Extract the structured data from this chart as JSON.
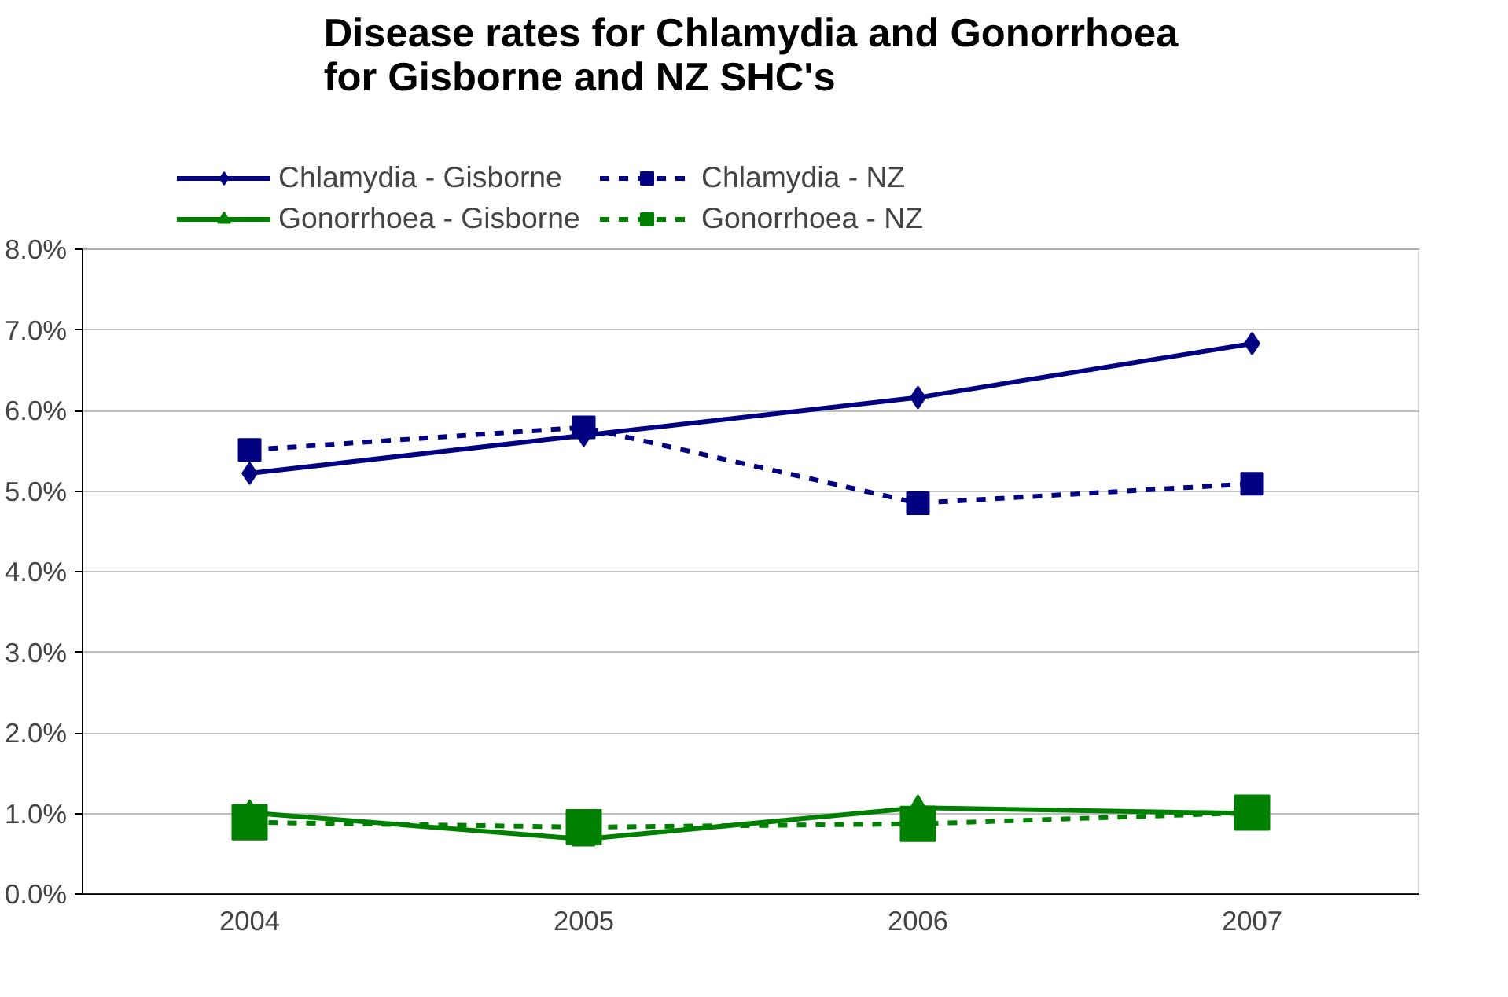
{
  "chart_data": {
    "type": "line",
    "title": "Disease rates for Chlamydia and Gonorrhoea\nfor Gisborne and NZ SHC's",
    "categories": [
      "2004",
      "2005",
      "2006",
      "2007"
    ],
    "series": [
      {
        "name": "Chlamydia - Gisborne",
        "color": "#000080",
        "marker": "diamond",
        "line_style": "solid",
        "values": [
          5.22,
          5.69,
          6.16,
          6.83
        ]
      },
      {
        "name": "Chlamydia - NZ",
        "color": "#000080",
        "marker": "square",
        "line_style": "dashed",
        "values": [
          5.51,
          5.79,
          4.85,
          5.09
        ]
      },
      {
        "name": "Gonorrhoea - Gisborne",
        "color": "#008000",
        "marker": "triangle",
        "line_style": "solid",
        "values": [
          1.01,
          0.68,
          1.07,
          1.0
        ]
      },
      {
        "name": "Gonorrhoea - NZ",
        "color": "#008000",
        "marker": "square",
        "line_style": "dashed",
        "values": [
          0.89,
          0.83,
          0.87,
          1.01
        ]
      }
    ],
    "ylim": [
      0,
      8
    ],
    "yticks": [
      {
        "value": 0,
        "label": "0.0%"
      },
      {
        "value": 1,
        "label": "1.0%"
      },
      {
        "value": 2,
        "label": "2.0%"
      },
      {
        "value": 3,
        "label": "3.0%"
      },
      {
        "value": 4,
        "label": "4.0%"
      },
      {
        "value": 5,
        "label": "5.0%"
      },
      {
        "value": 6,
        "label": "6.0%"
      },
      {
        "value": 7,
        "label": "7.0%"
      },
      {
        "value": 8,
        "label": "8.0%"
      }
    ],
    "grid": "y",
    "legend": "top"
  }
}
